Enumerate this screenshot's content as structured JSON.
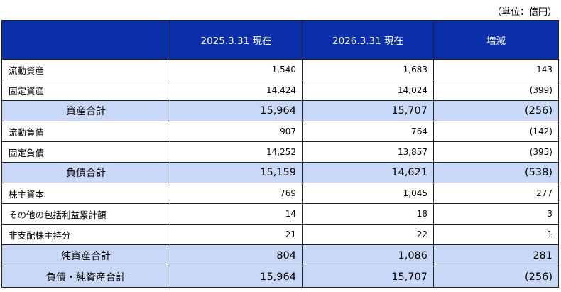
{
  "unit_note": "（単位：億円）",
  "header": {
    "col_label": "",
    "col_2025": "2025.3.31 現在",
    "col_2026": "2026.3.31 現在",
    "col_change": "増減"
  },
  "rows": [
    {
      "label": "流動資産",
      "v2025": "1,540",
      "v2026": "1,683",
      "change": "143"
    },
    {
      "label": "固定資産",
      "v2025": "14,424",
      "v2026": "14,024",
      "change": "(399)"
    },
    {
      "label": "資産合計",
      "v2025": "15,964",
      "v2026": "15,707",
      "change": "(256)"
    },
    {
      "label": "流動負債",
      "v2025": "907",
      "v2026": "764",
      "change": "(142)"
    },
    {
      "label": "固定負債",
      "v2025": "14,252",
      "v2026": "13,857",
      "change": "(395)"
    },
    {
      "label": "負債合計",
      "v2025": "15,159",
      "v2026": "14,621",
      "change": "(538)"
    },
    {
      "label": "株主資本",
      "v2025": "769",
      "v2026": "1,045",
      "change": "277"
    },
    {
      "label": "その他の包括利益累計額",
      "v2025": "14",
      "v2026": "18",
      "change": "3"
    },
    {
      "label": "非支配株主持分",
      "v2025": "21",
      "v2026": "22",
      "change": "1"
    },
    {
      "label": "純資産合計",
      "v2025": "804",
      "v2026": "1,086",
      "change": "281"
    },
    {
      "label": "負債・純資産合計",
      "v2025": "15,964",
      "v2026": "15,707",
      "change": "(256)"
    }
  ]
}
